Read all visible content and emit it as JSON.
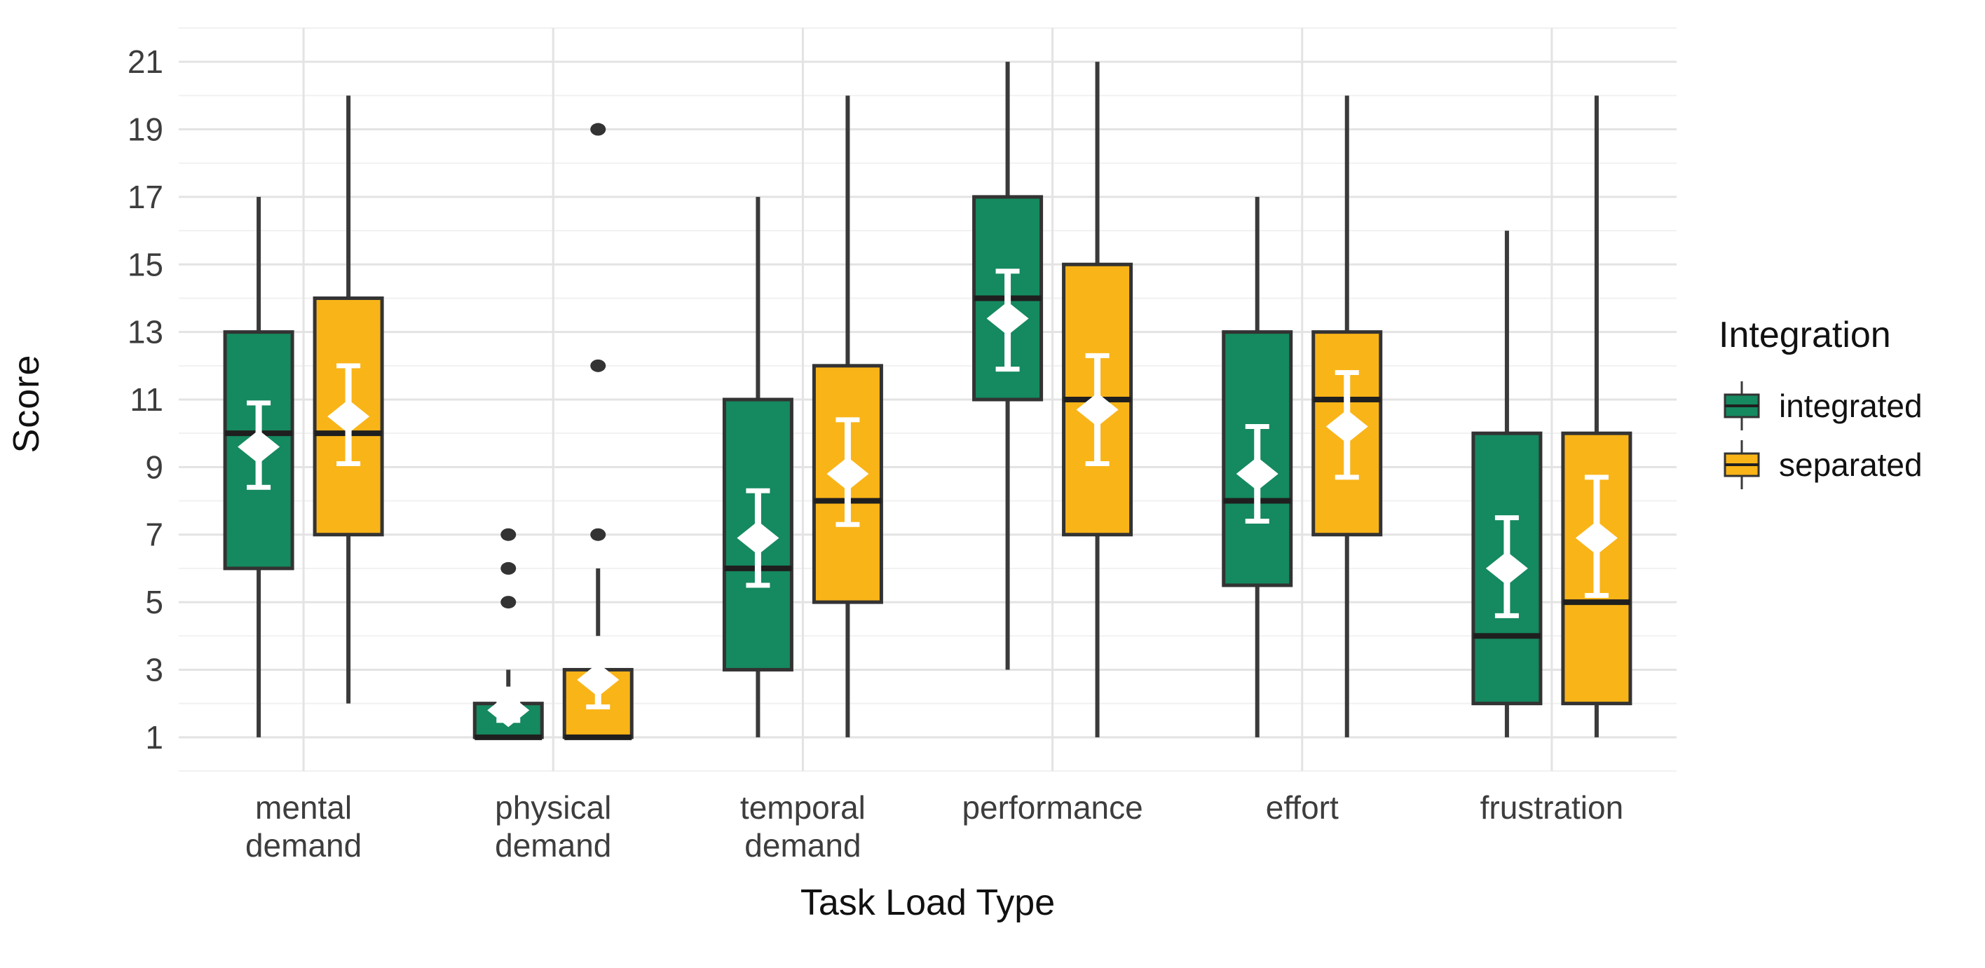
{
  "chart_data": {
    "type": "boxplot",
    "title": "",
    "xlabel": "Task Load Type",
    "ylabel": "Score",
    "y_domain": [
      0,
      22
    ],
    "y_major_ticks": [
      1,
      3,
      5,
      7,
      9,
      11,
      13,
      15,
      17,
      19,
      21
    ],
    "y_minor_ticks": [
      0,
      2,
      4,
      6,
      8,
      10,
      12,
      14,
      16,
      18,
      20,
      22
    ],
    "grid": {
      "major_color": "#e3e3e3",
      "minor_color": "#f1f1f1",
      "vertical_major": true
    },
    "series_order": [
      "integrated",
      "separated"
    ],
    "colors": {
      "integrated": "#15895f",
      "separated": "#f9b418"
    },
    "style_colors": {
      "box_border": "#333333",
      "median": "#1f1f1f",
      "whisker": "#3a3a3a",
      "outlier": "#333333",
      "mean_marker": "#ffffff",
      "errorbar": "#ffffff"
    },
    "categories": [
      {
        "label_lines": [
          "mental",
          "demand"
        ],
        "integrated": {
          "lo": 1,
          "q1": 6,
          "median": 10,
          "q3": 13,
          "hi": 17,
          "mean": 9.6,
          "ci": [
            8.4,
            10.9
          ],
          "outliers": []
        },
        "separated": {
          "lo": 2,
          "q1": 7,
          "median": 10,
          "q3": 14,
          "hi": 20,
          "mean": 10.5,
          "ci": [
            9.1,
            12.0
          ],
          "outliers": []
        }
      },
      {
        "label_lines": [
          "physical",
          "demand"
        ],
        "integrated": {
          "lo": 1,
          "q1": 1,
          "median": 1,
          "q3": 2,
          "hi": 3,
          "hi_seg": [
            2.5,
            3
          ],
          "mean": 1.8,
          "ci": [
            1.5,
            2.1
          ],
          "outliers": [
            5,
            6,
            7
          ]
        },
        "separated": {
          "lo": 1,
          "q1": 1,
          "median": 1,
          "q3": 3,
          "hi": 6,
          "hi_seg": [
            4,
            6
          ],
          "mean": 2.7,
          "ci": [
            1.9,
            3.4
          ],
          "outliers": [
            7,
            12,
            19
          ]
        }
      },
      {
        "label_lines": [
          "temporal",
          "demand"
        ],
        "integrated": {
          "lo": 1,
          "q1": 3,
          "median": 6,
          "q3": 11,
          "hi": 17,
          "mean": 6.9,
          "ci": [
            5.5,
            8.3
          ],
          "outliers": []
        },
        "separated": {
          "lo": 1,
          "q1": 5,
          "median": 8,
          "q3": 12,
          "hi": 20,
          "mean": 8.8,
          "ci": [
            7.3,
            10.4
          ],
          "outliers": []
        }
      },
      {
        "label_lines": [
          "performance"
        ],
        "integrated": {
          "lo": 3,
          "q1": 11,
          "median": 14,
          "q3": 17,
          "hi": 21,
          "mean": 13.4,
          "ci": [
            11.9,
            14.8
          ],
          "outliers": []
        },
        "separated": {
          "lo": 1,
          "q1": 7,
          "median": 11,
          "q3": 15,
          "hi": 21,
          "mean": 10.7,
          "ci": [
            9.1,
            12.3
          ],
          "outliers": []
        }
      },
      {
        "label_lines": [
          "effort"
        ],
        "integrated": {
          "lo": 1,
          "q1": 5.5,
          "median": 8,
          "q3": 13,
          "hi": 17,
          "mean": 8.8,
          "ci": [
            7.4,
            10.2
          ],
          "outliers": []
        },
        "separated": {
          "lo": 1,
          "q1": 7,
          "median": 11,
          "q3": 13,
          "hi": 20,
          "mean": 10.2,
          "ci": [
            8.7,
            11.8
          ],
          "outliers": []
        }
      },
      {
        "label_lines": [
          "frustration"
        ],
        "integrated": {
          "lo": 1,
          "q1": 2,
          "median": 4,
          "q3": 10,
          "hi": 16,
          "mean": 6.0,
          "ci": [
            4.6,
            7.5
          ],
          "outliers": []
        },
        "separated": {
          "lo": 1,
          "q1": 2,
          "median": 5,
          "q3": 10,
          "hi": 20,
          "mean": 6.9,
          "ci": [
            5.2,
            8.7
          ],
          "outliers": []
        }
      }
    ]
  },
  "legend": {
    "title": "Integration",
    "items": [
      {
        "label": "integrated",
        "series": "integrated"
      },
      {
        "label": "separated",
        "series": "separated"
      }
    ]
  }
}
